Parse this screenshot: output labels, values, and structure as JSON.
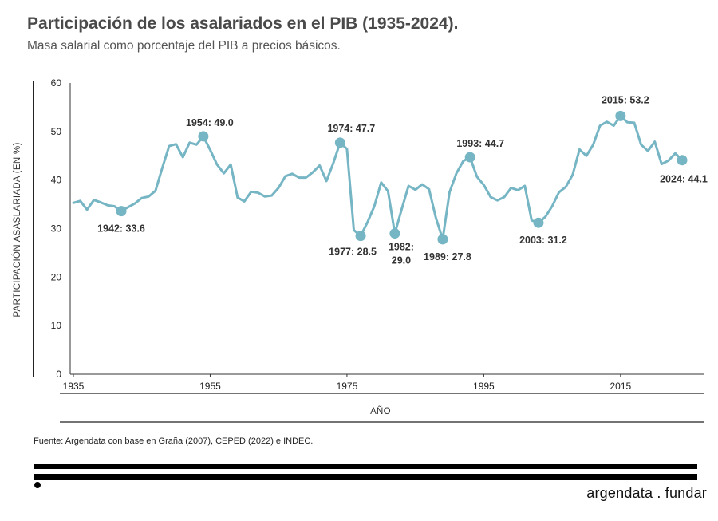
{
  "title": "Participación de los asalariados en el PIB (1935-2024).",
  "subtitle": "Masa salarial como porcentaje del PIB a precios básicos.",
  "source": "Fuente: Argendata con base en Graña (2007), CEPED (2022) e INDEC.",
  "brand": "argendata . fundar",
  "colors": {
    "line": "#75b5c4",
    "text": "#333333"
  },
  "chart_data": {
    "type": "line",
    "title": "Participación de los asalariados en el PIB (1935-2024).",
    "subtitle": "Masa salarial como porcentaje del PIB a precios básicos.",
    "xlabel": "AÑO",
    "ylabel": "PARTICIPACIÓN ASASLARIADA  (EN %)",
    "ylim": [
      0,
      60
    ],
    "yticks": [
      0,
      10,
      20,
      30,
      40,
      50,
      60
    ],
    "xlim": [
      1935,
      2024
    ],
    "xticks": [
      1935,
      1955,
      1975,
      1995,
      2015
    ],
    "grid": false,
    "legend": "none",
    "series": [
      {
        "x": [
          1935,
          1936,
          1937,
          1938,
          1939,
          1940,
          1941,
          1942,
          1943,
          1944,
          1945,
          1946,
          1947,
          1948,
          1949,
          1950,
          1951,
          1952,
          1953,
          1954,
          1955,
          1956,
          1957,
          1958,
          1959,
          1960,
          1961,
          1962,
          1963,
          1964,
          1965,
          1966,
          1967,
          1968,
          1969,
          1970,
          1971,
          1972,
          1973,
          1974,
          1975,
          1976,
          1977,
          1978,
          1979,
          1980,
          1981,
          1982,
          1983,
          1984,
          1985,
          1986,
          1987,
          1988,
          1989,
          1990,
          1991,
          1992,
          1993,
          1994,
          1995,
          1996,
          1997,
          1998,
          1999,
          2000,
          2001,
          2002,
          2003,
          2004,
          2005,
          2006,
          2007,
          2008,
          2009,
          2010,
          2011,
          2012,
          2013,
          2014,
          2015,
          2016,
          2017,
          2018,
          2019,
          2020,
          2021,
          2022,
          2023,
          2024
        ],
        "values": [
          35.3,
          35.7,
          33.9,
          35.9,
          35.4,
          34.8,
          34.6,
          33.6,
          34.4,
          35.2,
          36.3,
          36.6,
          37.8,
          42.5,
          47.0,
          47.4,
          44.7,
          47.7,
          47.3,
          49.0,
          46.2,
          43.2,
          41.4,
          43.2,
          36.4,
          35.6,
          37.6,
          37.4,
          36.6,
          36.8,
          38.4,
          40.8,
          41.3,
          40.5,
          40.5,
          41.6,
          43.0,
          39.8,
          43.5,
          47.7,
          46.4,
          29.7,
          28.5,
          31.3,
          34.6,
          39.5,
          37.7,
          29.0,
          34.0,
          38.8,
          38.0,
          39.1,
          38.1,
          32.2,
          27.8,
          37.5,
          41.4,
          43.9,
          44.7,
          40.7,
          39.0,
          36.5,
          35.8,
          36.5,
          38.4,
          37.9,
          38.8,
          31.7,
          31.2,
          32.4,
          34.6,
          37.5,
          38.6,
          41.1,
          46.3,
          45.0,
          47.3,
          51.2,
          52.0,
          51.2,
          53.2,
          51.9,
          51.8,
          47.3,
          46.0,
          47.9,
          43.3,
          44.0,
          45.5,
          44.1
        ]
      }
    ],
    "annotations": [
      {
        "x": 1942,
        "y": 33.6,
        "label": "1942:  33.6"
      },
      {
        "x": 1954,
        "y": 49.0,
        "label": "1954:  49.0"
      },
      {
        "x": 1974,
        "y": 47.7,
        "label": "1974:  47.7"
      },
      {
        "x": 1977,
        "y": 28.5,
        "label": "1977:  28.5"
      },
      {
        "x": 1982,
        "y": 29.0,
        "label": "1982:\n29.0"
      },
      {
        "x": 1989,
        "y": 27.8,
        "label": "1989:  27.8"
      },
      {
        "x": 1993,
        "y": 44.7,
        "label": "1993:  44.7"
      },
      {
        "x": 2003,
        "y": 31.2,
        "label": "2003:  31.2"
      },
      {
        "x": 2015,
        "y": 53.2,
        "label": "2015:  53.2"
      },
      {
        "x": 2024,
        "y": 44.1,
        "label": "2024: 44.1"
      }
    ]
  }
}
